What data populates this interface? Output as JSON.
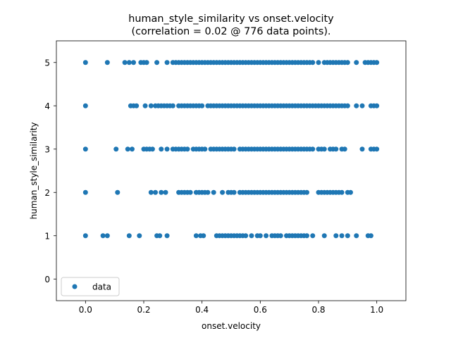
{
  "chart_data": {
    "type": "scatter",
    "title_line1": "human_style_similarity vs onset.velocity",
    "title_line2": "(correlation = 0.02 @ 776 data points).",
    "xlabel": "onset.velocity",
    "ylabel": "human_style_similarity",
    "xlim": [
      -0.1,
      1.1
    ],
    "ylim": [
      -0.5,
      5.5
    ],
    "xticks": [
      "0.0",
      "0.2",
      "0.4",
      "0.6",
      "0.8",
      "1.0"
    ],
    "yticks": [
      "0",
      "1",
      "2",
      "3",
      "4",
      "5"
    ],
    "legend": {
      "label": "data",
      "position": "lower-left"
    },
    "grid": false,
    "marker_color": "#1f77b4",
    "series": [
      {
        "name": "data",
        "rows": [
          {
            "y": 5,
            "x": [
              0.0,
              0.075,
              0.135,
              0.15,
              0.165,
              0.19,
              0.2,
              0.21,
              0.245,
              0.28,
              0.3,
              0.31,
              0.32,
              0.33,
              0.34,
              0.35,
              0.36,
              0.37,
              0.38,
              0.39,
              0.4,
              0.41,
              0.42,
              0.43,
              0.44,
              0.45,
              0.46,
              0.47,
              0.48,
              0.49,
              0.5,
              0.51,
              0.52,
              0.53,
              0.54,
              0.55,
              0.56,
              0.57,
              0.58,
              0.59,
              0.6,
              0.61,
              0.62,
              0.63,
              0.64,
              0.65,
              0.66,
              0.67,
              0.68,
              0.69,
              0.7,
              0.71,
              0.72,
              0.73,
              0.74,
              0.75,
              0.76,
              0.77,
              0.78,
              0.8,
              0.82,
              0.83,
              0.84,
              0.85,
              0.86,
              0.87,
              0.88,
              0.89,
              0.9,
              0.93,
              0.96,
              0.97,
              0.98,
              0.99,
              1.0
            ]
          },
          {
            "y": 4,
            "x": [
              0.0,
              0.155,
              0.165,
              0.175,
              0.205,
              0.225,
              0.24,
              0.25,
              0.26,
              0.27,
              0.28,
              0.29,
              0.3,
              0.32,
              0.33,
              0.34,
              0.35,
              0.36,
              0.37,
              0.38,
              0.39,
              0.4,
              0.42,
              0.43,
              0.44,
              0.45,
              0.46,
              0.47,
              0.48,
              0.49,
              0.5,
              0.51,
              0.52,
              0.53,
              0.54,
              0.55,
              0.56,
              0.57,
              0.58,
              0.59,
              0.6,
              0.61,
              0.62,
              0.63,
              0.64,
              0.65,
              0.66,
              0.67,
              0.68,
              0.69,
              0.7,
              0.71,
              0.72,
              0.73,
              0.74,
              0.75,
              0.76,
              0.77,
              0.78,
              0.79,
              0.8,
              0.81,
              0.82,
              0.83,
              0.84,
              0.85,
              0.86,
              0.87,
              0.88,
              0.89,
              0.9,
              0.93,
              0.95,
              0.98,
              0.99,
              1.0
            ]
          },
          {
            "y": 3,
            "x": [
              0.0,
              0.105,
              0.145,
              0.16,
              0.2,
              0.21,
              0.22,
              0.23,
              0.26,
              0.28,
              0.3,
              0.31,
              0.32,
              0.33,
              0.34,
              0.35,
              0.37,
              0.38,
              0.39,
              0.4,
              0.41,
              0.43,
              0.44,
              0.45,
              0.46,
              0.47,
              0.48,
              0.49,
              0.5,
              0.51,
              0.53,
              0.54,
              0.55,
              0.56,
              0.57,
              0.58,
              0.59,
              0.6,
              0.61,
              0.62,
              0.63,
              0.64,
              0.65,
              0.66,
              0.67,
              0.68,
              0.69,
              0.7,
              0.71,
              0.72,
              0.73,
              0.74,
              0.75,
              0.76,
              0.77,
              0.78,
              0.8,
              0.81,
              0.82,
              0.84,
              0.85,
              0.86,
              0.88,
              0.89,
              0.95,
              0.98,
              0.99,
              1.0
            ]
          },
          {
            "y": 2,
            "x": [
              0.0,
              0.11,
              0.225,
              0.24,
              0.26,
              0.275,
              0.32,
              0.33,
              0.34,
              0.35,
              0.36,
              0.38,
              0.39,
              0.4,
              0.41,
              0.42,
              0.44,
              0.47,
              0.49,
              0.5,
              0.51,
              0.53,
              0.54,
              0.55,
              0.56,
              0.57,
              0.58,
              0.59,
              0.6,
              0.61,
              0.62,
              0.63,
              0.64,
              0.65,
              0.66,
              0.67,
              0.68,
              0.69,
              0.7,
              0.71,
              0.72,
              0.73,
              0.74,
              0.75,
              0.76,
              0.8,
              0.81,
              0.82,
              0.83,
              0.84,
              0.85,
              0.86,
              0.87,
              0.88,
              0.9,
              0.91
            ]
          },
          {
            "y": 1,
            "x": [
              0.0,
              0.06,
              0.075,
              0.15,
              0.185,
              0.245,
              0.255,
              0.28,
              0.38,
              0.395,
              0.405,
              0.45,
              0.46,
              0.47,
              0.48,
              0.49,
              0.5,
              0.51,
              0.52,
              0.53,
              0.54,
              0.55,
              0.57,
              0.59,
              0.6,
              0.62,
              0.64,
              0.65,
              0.66,
              0.67,
              0.69,
              0.7,
              0.71,
              0.72,
              0.73,
              0.74,
              0.75,
              0.76,
              0.78,
              0.82,
              0.86,
              0.88,
              0.9,
              0.93,
              0.97,
              0.98
            ]
          }
        ]
      }
    ]
  }
}
